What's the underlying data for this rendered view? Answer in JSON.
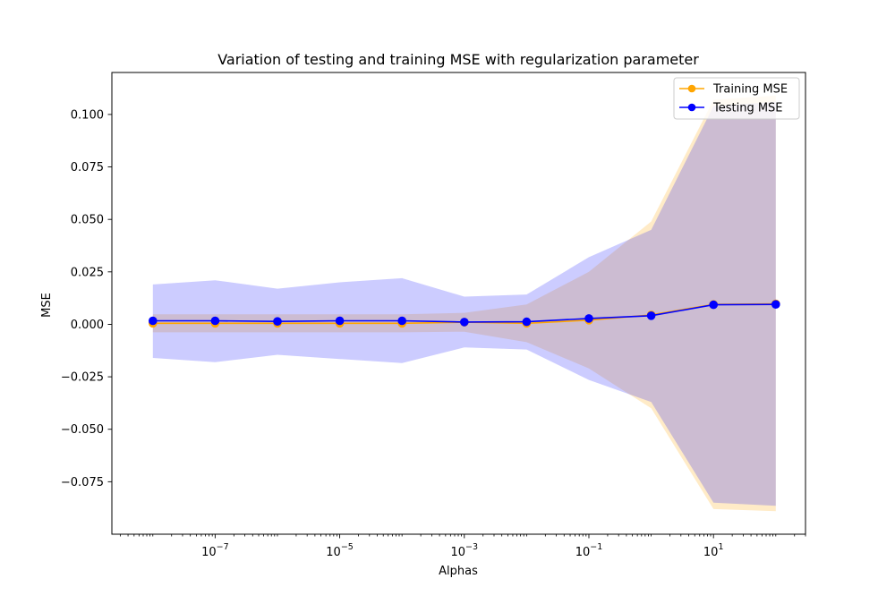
{
  "chart_data": {
    "type": "line",
    "title": "Variation of testing and training MSE with regularization parameter",
    "xlabel": "Alphas",
    "ylabel": "MSE",
    "xscale": "log",
    "xlim": [
      2.2e-09,
      300.0
    ],
    "ylim": [
      -0.1,
      0.12
    ],
    "grid": false,
    "legend_position": "top-right",
    "x_ticks": [
      {
        "value": 1e-07,
        "base": "10",
        "exp": "−7"
      },
      {
        "value": 1e-05,
        "base": "10",
        "exp": "−5"
      },
      {
        "value": 0.001,
        "base": "10",
        "exp": "−3"
      },
      {
        "value": 0.1,
        "base": "10",
        "exp": "−1"
      },
      {
        "value": 10,
        "base": "10",
        "exp": "1"
      }
    ],
    "y_ticks": [
      {
        "value": 0.1,
        "label": "0.100"
      },
      {
        "value": 0.075,
        "label": "0.075"
      },
      {
        "value": 0.05,
        "label": "0.050"
      },
      {
        "value": 0.025,
        "label": "0.025"
      },
      {
        "value": 0.0,
        "label": "0.000"
      },
      {
        "value": -0.025,
        "label": "−0.025"
      },
      {
        "value": -0.05,
        "label": "−0.050"
      },
      {
        "value": -0.075,
        "label": "−0.075"
      }
    ],
    "x": [
      1e-08,
      1e-07,
      1e-06,
      1e-05,
      0.0001,
      0.001,
      0.01,
      0.1,
      1,
      10,
      100
    ],
    "series": [
      {
        "name": "Training MSE",
        "color": "#FFA500",
        "band_color": "#FFA500",
        "values": [
          0.0005,
          0.0005,
          0.0005,
          0.0005,
          0.0005,
          0.001,
          0.0005,
          0.002,
          0.0045,
          0.0095,
          0.0098
        ],
        "band_upper": [
          0.0048,
          0.0048,
          0.0048,
          0.0048,
          0.0048,
          0.0055,
          0.0095,
          0.025,
          0.049,
          0.107,
          0.109
        ],
        "band_lower": [
          -0.0038,
          -0.0038,
          -0.0038,
          -0.0038,
          -0.0038,
          -0.0035,
          -0.0085,
          -0.021,
          -0.04,
          -0.088,
          -0.089
        ]
      },
      {
        "name": "Testing MSE",
        "color": "#0000FF",
        "band_color": "#0000FF",
        "values": [
          0.0017,
          0.0017,
          0.0014,
          0.0017,
          0.0017,
          0.0011,
          0.0012,
          0.0028,
          0.0041,
          0.0093,
          0.0095
        ],
        "band_upper": [
          0.019,
          0.021,
          0.017,
          0.02,
          0.022,
          0.0132,
          0.0142,
          0.032,
          0.045,
          0.104,
          0.106
        ],
        "band_lower": [
          -0.016,
          -0.018,
          -0.0145,
          -0.0165,
          -0.0185,
          -0.011,
          -0.012,
          -0.0265,
          -0.037,
          -0.085,
          -0.0865
        ]
      }
    ]
  }
}
